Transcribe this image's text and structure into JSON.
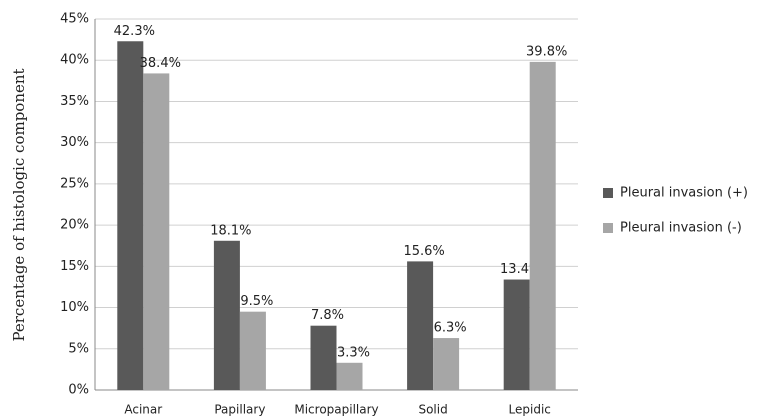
{
  "chart_data": {
    "type": "bar",
    "y_label": "Percentage of histologic component",
    "categories": [
      "Acinar",
      "Papillary",
      "Micropapillary",
      "Solid",
      "Lepidic"
    ],
    "series": [
      {
        "name": "Pleural invasion (+)",
        "color": "#595959",
        "values": [
          42.3,
          18.1,
          7.8,
          15.6,
          13.4
        ],
        "value_labels": [
          "42.3%",
          "18.1%",
          "7.8%",
          "15.6%",
          "13.4%"
        ]
      },
      {
        "name": "Pleural invasion (-)",
        "color": "#a6a6a6",
        "values": [
          38.4,
          9.5,
          3.3,
          6.3,
          39.8
        ],
        "value_labels": [
          "38.4%",
          "9.5%",
          "3.3%",
          "6.3%",
          "39.8%"
        ]
      }
    ],
    "ylim": [
      0,
      45
    ],
    "yticks": [
      {
        "value": 0,
        "label": "0%"
      },
      {
        "value": 5,
        "label": "5%"
      },
      {
        "value": 10,
        "label": "10%"
      },
      {
        "value": 15,
        "label": "15%"
      },
      {
        "value": 20,
        "label": "20%"
      },
      {
        "value": 25,
        "label": "25%"
      },
      {
        "value": 30,
        "label": "30%"
      },
      {
        "value": 35,
        "label": "35%"
      },
      {
        "value": 40,
        "label": "40%"
      },
      {
        "value": 45,
        "label": "45%"
      }
    ],
    "grid": true,
    "legend": "right"
  }
}
